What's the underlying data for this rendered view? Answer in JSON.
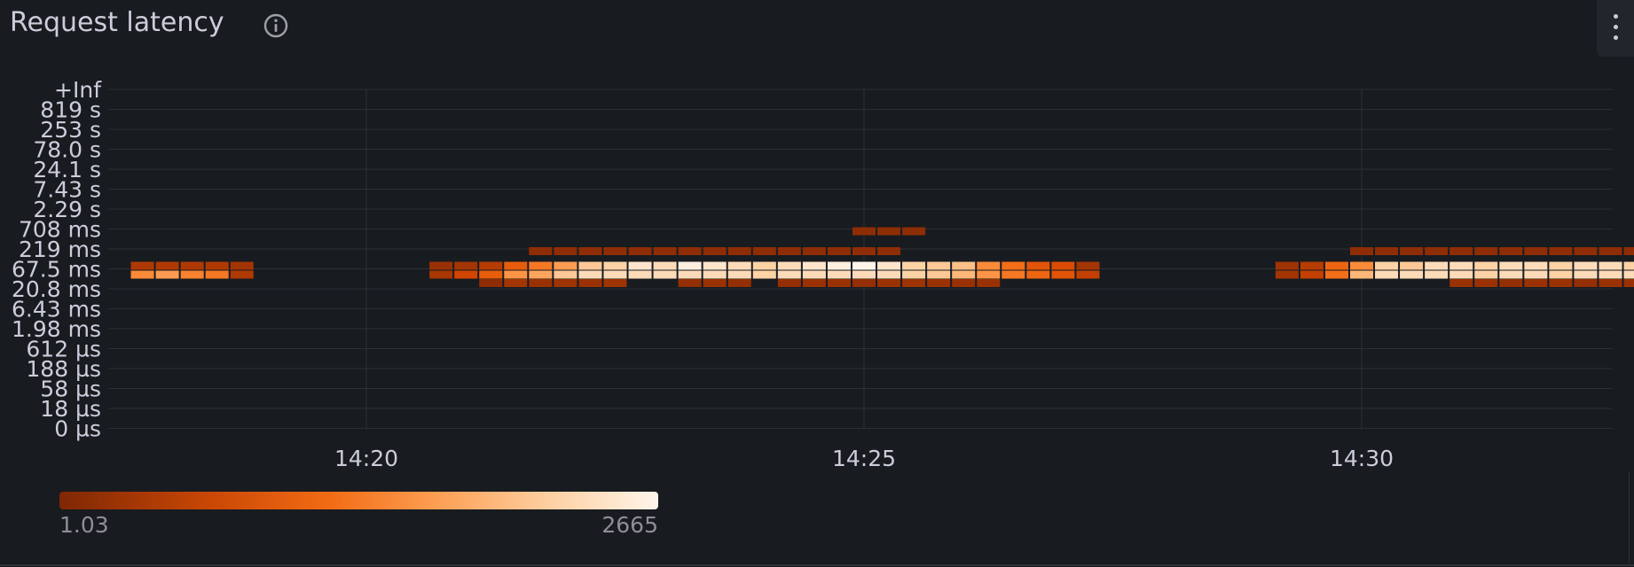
{
  "panel": {
    "title": "Request latency",
    "info_icon": "info-circle-icon",
    "menu_icon": "kebab-menu-icon"
  },
  "chart_data": {
    "type": "heatmap",
    "title": "Request latency",
    "y_buckets": [
      "0 µs",
      "18 µs",
      "58 µs",
      "188 µs",
      "612 µs",
      "1.98 ms",
      "6.43 ms",
      "20.8 ms",
      "67.5 ms",
      "219 ms",
      "708 ms",
      "2.29 s",
      "7.43 s",
      "24.1 s",
      "78.0 s",
      "253 s",
      "819 s",
      "+Inf"
    ],
    "x_ticks": [
      "14:20",
      "14:25",
      "14:30"
    ],
    "x_start": "14:17:30",
    "x_end": "14:32:30",
    "bucket_interval_seconds": 15,
    "colors": [
      "#7f2704",
      "#a63603",
      "#d94801",
      "#f16913",
      "#fd8d3c",
      "#fdae6b",
      "#fdd0a2",
      "#fff5eb"
    ],
    "legend": {
      "min": "1.03",
      "max": "2665"
    },
    "series": [
      {
        "bucket": "20.8 ms",
        "cells": [
          {
            "time": "14:21:15",
            "value": 150
          },
          {
            "time": "14:21:30",
            "value": 350
          },
          {
            "time": "14:21:45",
            "value": 250
          },
          {
            "time": "14:22:00",
            "value": 300
          },
          {
            "time": "14:22:15",
            "value": 250
          },
          {
            "time": "14:22:30",
            "value": 300
          },
          {
            "time": "14:23:15",
            "value": 200
          },
          {
            "time": "14:23:30",
            "value": 250
          },
          {
            "time": "14:23:45",
            "value": 200
          },
          {
            "time": "14:24:15",
            "value": 200
          },
          {
            "time": "14:24:30",
            "value": 250
          },
          {
            "time": "14:24:45",
            "value": 250
          },
          {
            "time": "14:25:00",
            "value": 200
          },
          {
            "time": "14:25:15",
            "value": 250
          },
          {
            "time": "14:25:30",
            "value": 300
          },
          {
            "time": "14:25:45",
            "value": 250
          },
          {
            "time": "14:26:00",
            "value": 250
          },
          {
            "time": "14:26:15",
            "value": 250
          },
          {
            "time": "14:31:00",
            "value": 250
          },
          {
            "time": "14:31:15",
            "value": 250
          },
          {
            "time": "14:31:30",
            "value": 200
          },
          {
            "time": "14:31:45",
            "value": 250
          },
          {
            "time": "14:32:00",
            "value": 250
          },
          {
            "time": "14:32:15",
            "value": 200
          },
          {
            "time": "14:32:30",
            "value": 250
          },
          {
            "time": "14:32:45",
            "value": 250
          },
          {
            "time": "14:33:00",
            "value": 200
          }
        ]
      },
      {
        "bucket": "67.5 ms",
        "subrows": true,
        "cells": [
          {
            "time": "14:17:45",
            "top": 450,
            "bottom": 1500
          },
          {
            "time": "14:18:00",
            "top": 450,
            "bottom": 1700
          },
          {
            "time": "14:18:15",
            "top": 450,
            "bottom": 1400
          },
          {
            "time": "14:18:30",
            "top": 450,
            "bottom": 1300
          },
          {
            "time": "14:18:45",
            "top": 350,
            "bottom": 450
          },
          {
            "time": "14:20:45",
            "top": 250,
            "bottom": 400
          },
          {
            "time": "14:21:00",
            "top": 350,
            "bottom": 700
          },
          {
            "time": "14:21:15",
            "top": 500,
            "bottom": 1000
          },
          {
            "time": "14:21:30",
            "top": 1000,
            "bottom": 1600
          },
          {
            "time": "14:21:45",
            "top": 1300,
            "bottom": 1800
          },
          {
            "time": "14:22:00",
            "top": 1700,
            "bottom": 2200
          },
          {
            "time": "14:22:15",
            "top": 2200,
            "bottom": 2400
          },
          {
            "time": "14:22:30",
            "top": 2300,
            "bottom": 2400
          },
          {
            "time": "14:22:45",
            "top": 2500,
            "bottom": 2400
          },
          {
            "time": "14:23:00",
            "top": 2400,
            "bottom": 2400
          },
          {
            "time": "14:23:15",
            "top": 2600,
            "bottom": 2400
          },
          {
            "time": "14:23:30",
            "top": 2500,
            "bottom": 2400
          },
          {
            "time": "14:23:45",
            "top": 2400,
            "bottom": 2400
          },
          {
            "time": "14:24:00",
            "top": 2300,
            "bottom": 2300
          },
          {
            "time": "14:24:15",
            "top": 2400,
            "bottom": 2400
          },
          {
            "time": "14:24:30",
            "top": 2500,
            "bottom": 2400
          },
          {
            "time": "14:24:45",
            "top": 2600,
            "bottom": 2400
          },
          {
            "time": "14:25:00",
            "top": 2665,
            "bottom": 2400
          },
          {
            "time": "14:25:15",
            "top": 2500,
            "bottom": 2400
          },
          {
            "time": "14:25:30",
            "top": 2300,
            "bottom": 2300
          },
          {
            "time": "14:25:45",
            "top": 2200,
            "bottom": 2200
          },
          {
            "time": "14:26:00",
            "top": 2100,
            "bottom": 2000
          },
          {
            "time": "14:26:15",
            "top": 1500,
            "bottom": 1600
          },
          {
            "time": "14:26:30",
            "top": 1200,
            "bottom": 1300
          },
          {
            "time": "14:26:45",
            "top": 900,
            "bottom": 1100
          },
          {
            "time": "14:27:00",
            "top": 800,
            "bottom": 900
          },
          {
            "time": "14:27:15",
            "top": 350,
            "bottom": 600
          },
          {
            "time": "14:29:15",
            "top": 300,
            "bottom": 350
          },
          {
            "time": "14:29:30",
            "top": 500,
            "bottom": 600
          },
          {
            "time": "14:29:45",
            "top": 1100,
            "bottom": 1200
          },
          {
            "time": "14:30:00",
            "top": 1500,
            "bottom": 2000
          },
          {
            "time": "14:30:15",
            "top": 2300,
            "bottom": 2400
          },
          {
            "time": "14:30:30",
            "top": 2200,
            "bottom": 2400
          },
          {
            "time": "14:30:45",
            "top": 2400,
            "bottom": 2400
          },
          {
            "time": "14:31:00",
            "top": 2400,
            "bottom": 2400
          },
          {
            "time": "14:31:15",
            "top": 2300,
            "bottom": 2300
          },
          {
            "time": "14:31:30",
            "top": 2400,
            "bottom": 2400
          },
          {
            "time": "14:31:45",
            "top": 2400,
            "bottom": 2400
          },
          {
            "time": "14:32:00",
            "top": 2300,
            "bottom": 2300
          },
          {
            "time": "14:32:15",
            "top": 2400,
            "bottom": 2400
          },
          {
            "time": "14:32:30",
            "top": 2400,
            "bottom": 2400
          },
          {
            "time": "14:32:45",
            "top": 2300,
            "bottom": 2400
          },
          {
            "time": "14:33:00",
            "top": 2400,
            "bottom": 2400
          }
        ]
      },
      {
        "bucket": "219 ms",
        "cells": [
          {
            "time": "14:21:45",
            "value": 150
          },
          {
            "time": "14:22:00",
            "value": 150
          },
          {
            "time": "14:22:15",
            "value": 150
          },
          {
            "time": "14:22:30",
            "value": 150
          },
          {
            "time": "14:22:45",
            "value": 150
          },
          {
            "time": "14:23:00",
            "value": 150
          },
          {
            "time": "14:23:15",
            "value": 150
          },
          {
            "time": "14:23:30",
            "value": 150
          },
          {
            "time": "14:23:45",
            "value": 150
          },
          {
            "time": "14:24:00",
            "value": 150
          },
          {
            "time": "14:24:15",
            "value": 150
          },
          {
            "time": "14:24:30",
            "value": 150
          },
          {
            "time": "14:24:45",
            "value": 150
          },
          {
            "time": "14:25:00",
            "value": 150
          },
          {
            "time": "14:25:15",
            "value": 150
          },
          {
            "time": "14:30:00",
            "value": 150
          },
          {
            "time": "14:30:15",
            "value": 150
          },
          {
            "time": "14:30:30",
            "value": 150
          },
          {
            "time": "14:30:45",
            "value": 150
          },
          {
            "time": "14:31:00",
            "value": 150
          },
          {
            "time": "14:31:15",
            "value": 150
          },
          {
            "time": "14:31:30",
            "value": 150
          },
          {
            "time": "14:31:45",
            "value": 150
          },
          {
            "time": "14:32:00",
            "value": 150
          },
          {
            "time": "14:32:15",
            "value": 150
          },
          {
            "time": "14:32:30",
            "value": 150
          },
          {
            "time": "14:32:45",
            "value": 150
          },
          {
            "time": "14:33:00",
            "value": 150
          }
        ]
      },
      {
        "bucket": "708 ms",
        "cells": [
          {
            "time": "14:25:00",
            "value": 150
          },
          {
            "time": "14:25:15",
            "value": 150
          },
          {
            "time": "14:25:30",
            "value": 150
          }
        ]
      }
    ]
  }
}
